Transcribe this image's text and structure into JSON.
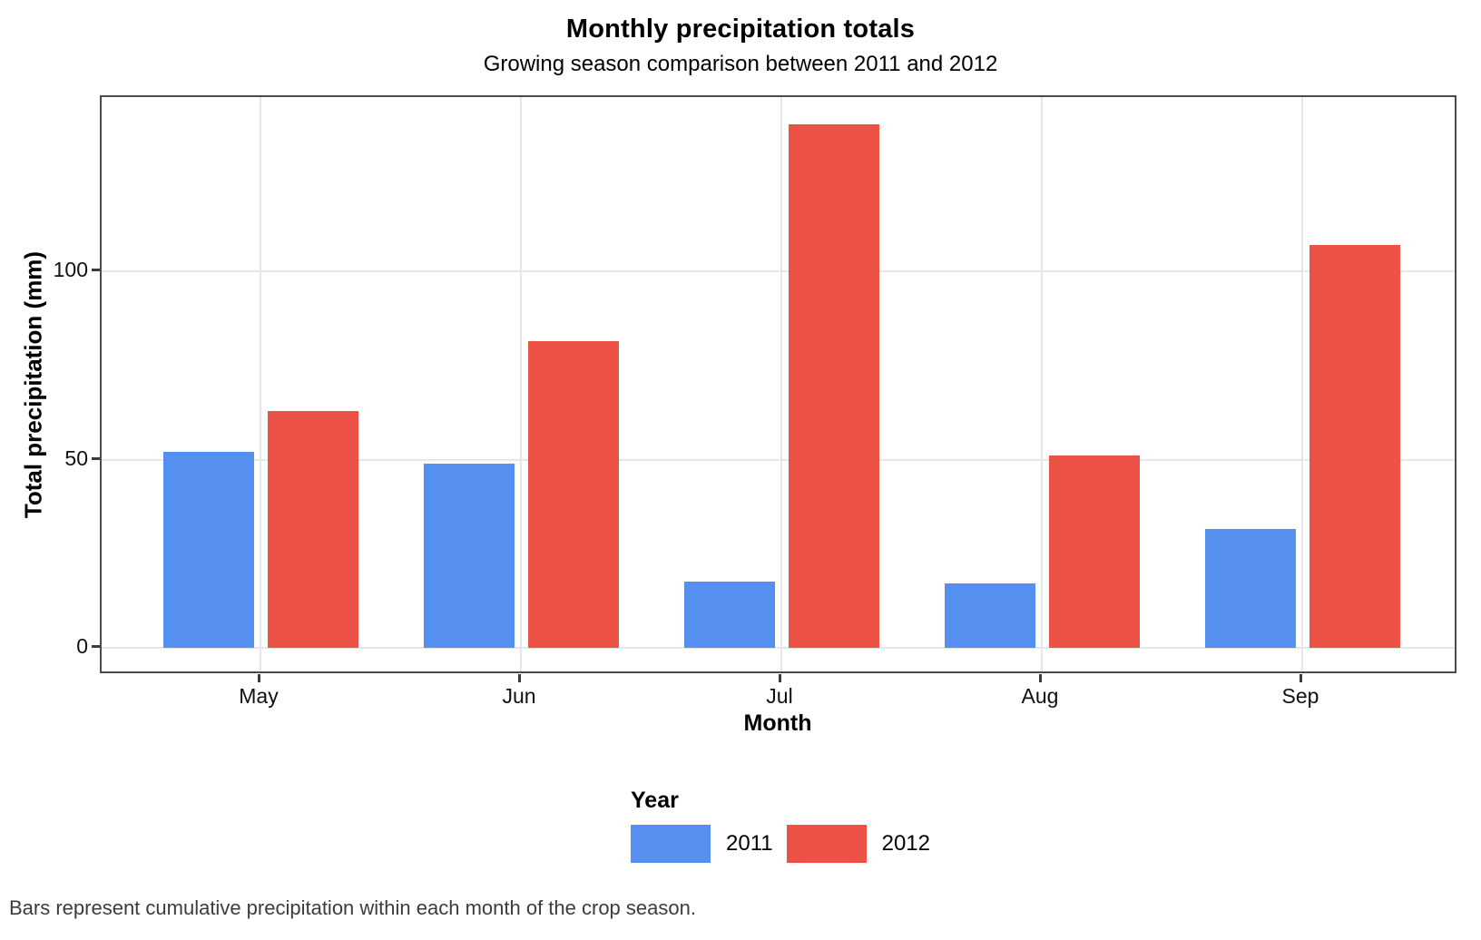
{
  "chart_data": {
    "type": "bar",
    "title": "Monthly precipitation totals",
    "subtitle": "Growing season comparison between 2011 and 2012",
    "xlabel": "Month",
    "ylabel": "Total precipitation (mm)",
    "categories": [
      "May",
      "Jun",
      "Jul",
      "Aug",
      "Sep"
    ],
    "series": [
      {
        "name": "2011",
        "color": "#5590F0",
        "values": [
          52,
          49,
          17.5,
          17,
          31.5
        ]
      },
      {
        "name": "2012",
        "color": "#EC5246",
        "values": [
          63,
          81.5,
          139,
          51,
          107
        ]
      }
    ],
    "ylim": [
      0,
      146
    ],
    "yticks": [
      0,
      50,
      100
    ],
    "ytick_labels": [
      "0",
      "50",
      "100"
    ],
    "grid": "major gridlines only, light gray on white panel with dark border",
    "legend_position": "bottom-center",
    "legend_title": "Year",
    "caption": "Bars represent cumulative precipitation within each month of the crop season."
  },
  "colors": {
    "bar_2011": "#5590F0",
    "bar_2012": "#EC5246",
    "gridline": "#E7E7E7",
    "panel_border": "#4B4B4B",
    "tick_mark": "#3B3B3B",
    "caption_text": "#3C3C3C"
  }
}
